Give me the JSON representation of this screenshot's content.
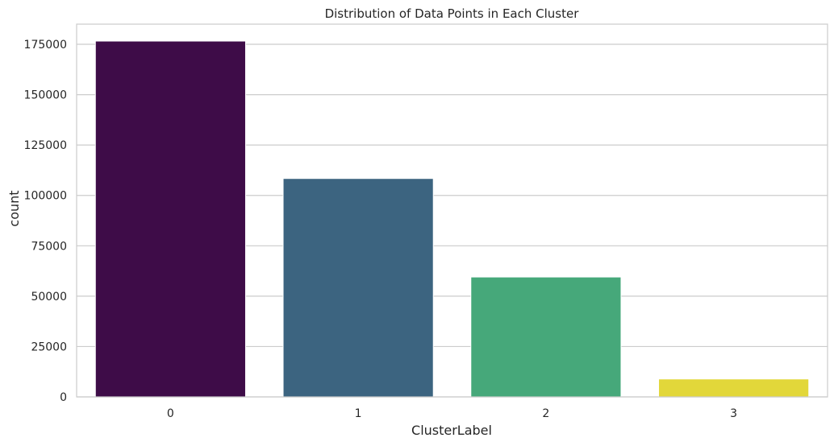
{
  "chart_data": {
    "type": "bar",
    "title": "Distribution of Data Points in Each Cluster",
    "xlabel": "ClusterLabel",
    "ylabel": "count",
    "categories": [
      "0",
      "1",
      "2",
      "3"
    ],
    "values": [
      176600,
      108400,
      59500,
      8900
    ],
    "colors": [
      "#3e0c48",
      "#3c6480",
      "#46a87a",
      "#e2d73a"
    ],
    "ylim": [
      0,
      185000
    ],
    "yticks": [
      0,
      25000,
      50000,
      75000,
      100000,
      125000,
      150000,
      175000
    ],
    "grid": "horizontal",
    "legend": "none"
  }
}
